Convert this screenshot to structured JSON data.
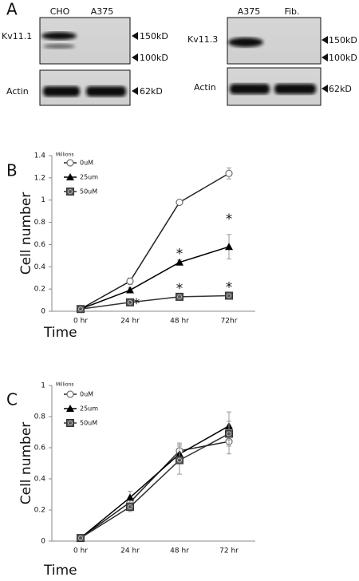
{
  "figure": {
    "panel_labels": [
      "A",
      "B",
      "C"
    ],
    "blots": [
      {
        "protein": "Kv11.1",
        "lanes": [
          "CHO",
          "A375"
        ],
        "markers": [
          "150kD",
          "100kD"
        ],
        "loading_control": "Actin",
        "loading_marker": "62kD"
      },
      {
        "protein": "Kv11.3",
        "lanes": [
          "A375",
          "Fib."
        ],
        "markers": [
          "150kD",
          "100kD"
        ],
        "loading_control": "Actin",
        "loading_marker": "62kD"
      }
    ]
  },
  "chart_data": [
    {
      "type": "line",
      "y_unit": "Millions",
      "y_label": "Cell number",
      "x_label": "Time",
      "categories": [
        "0 hr",
        "24 hr",
        "48 hr",
        "72hr"
      ],
      "ylim": [
        0,
        1.4
      ],
      "yticks": [
        0,
        0.2,
        0.4,
        0.6,
        0.8,
        1,
        1.2,
        1.4
      ],
      "series": [
        {
          "name": "0uM",
          "color": "#222222",
          "marker": "circle-open",
          "values": [
            0.02,
            0.27,
            0.98,
            1.24
          ],
          "errors": [
            0.01,
            0.03,
            0.02,
            0.05
          ]
        },
        {
          "name": "25um",
          "color": "#000000",
          "marker": "triangle",
          "values": [
            0.02,
            0.19,
            0.44,
            0.58
          ],
          "errors": [
            0.01,
            0.02,
            0.02,
            0.11
          ]
        },
        {
          "name": "50uM",
          "color": "#333333",
          "marker": "square",
          "values": [
            0.02,
            0.08,
            0.13,
            0.14
          ],
          "errors": [
            0.01,
            0.01,
            0.01,
            0.01
          ]
        }
      ],
      "annotations": [
        "*",
        "*",
        "*",
        "*",
        "*"
      ]
    },
    {
      "type": "line",
      "y_unit": "Millions",
      "y_label": "Cell number",
      "x_label": "Time",
      "categories": [
        "0 hr",
        "24 hr",
        "48 hr",
        "72 hr"
      ],
      "ylim": [
        0,
        1
      ],
      "yticks": [
        0,
        0.2,
        0.4,
        0.6,
        0.8,
        1
      ],
      "series": [
        {
          "name": "0uM",
          "color": "#222222",
          "marker": "circle-open",
          "values": [
            0.02,
            0.25,
            0.58,
            0.64
          ],
          "errors": [
            0.01,
            0.03,
            0.05,
            0.08
          ]
        },
        {
          "name": "25um",
          "color": "#000000",
          "marker": "triangle",
          "values": [
            0.02,
            0.28,
            0.56,
            0.74
          ],
          "errors": [
            0.01,
            0.04,
            0.06,
            0.09
          ]
        },
        {
          "name": "50uM",
          "color": "#333333",
          "marker": "square",
          "values": [
            0.02,
            0.22,
            0.52,
            0.69
          ],
          "errors": [
            0.01,
            0.03,
            0.09,
            0.08
          ]
        }
      ]
    }
  ]
}
